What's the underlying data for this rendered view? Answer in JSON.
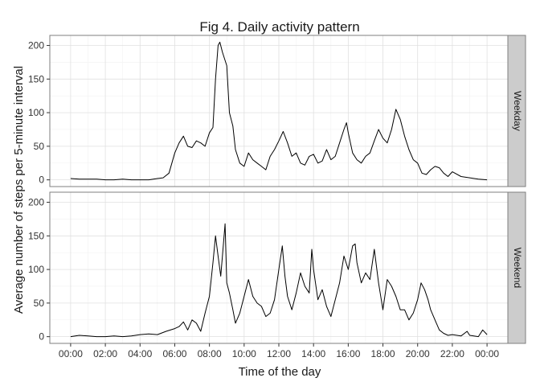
{
  "chart_data": {
    "type": "line",
    "title": "Fig 4. Daily activity pattern",
    "xlabel": "Time of the day",
    "ylabel": "Average number of steps per 5-minute interval",
    "x_ticks": [
      "00:00",
      "02:00",
      "04:00",
      "06:00",
      "08:00",
      "10:00",
      "12:00",
      "14:00",
      "16:00",
      "18:00",
      "20:00",
      "22:00",
      "00:00"
    ],
    "x_tick_hours": [
      0,
      2,
      4,
      6,
      8,
      10,
      12,
      14,
      16,
      18,
      20,
      22,
      24
    ],
    "y_ticks": [
      0,
      50,
      100,
      150,
      200
    ],
    "xlim_hours": [
      -1.2,
      25.2
    ],
    "ylim": [
      -10,
      215
    ],
    "grid": true,
    "panels": [
      {
        "strip": "Weekday",
        "series": [
          [
            0,
            2
          ],
          [
            0.5,
            1
          ],
          [
            1,
            1
          ],
          [
            1.5,
            1
          ],
          [
            2,
            0
          ],
          [
            2.5,
            0
          ],
          [
            3,
            1
          ],
          [
            3.5,
            0
          ],
          [
            4,
            0
          ],
          [
            4.5,
            0
          ],
          [
            5,
            2
          ],
          [
            5.33,
            3
          ],
          [
            5.67,
            10
          ],
          [
            6,
            40
          ],
          [
            6.25,
            55
          ],
          [
            6.5,
            65
          ],
          [
            6.75,
            50
          ],
          [
            7,
            48
          ],
          [
            7.25,
            58
          ],
          [
            7.5,
            55
          ],
          [
            7.75,
            50
          ],
          [
            8,
            70
          ],
          [
            8.2,
            78
          ],
          [
            8.35,
            150
          ],
          [
            8.5,
            200
          ],
          [
            8.6,
            205
          ],
          [
            8.75,
            190
          ],
          [
            9,
            170
          ],
          [
            9.15,
            100
          ],
          [
            9.35,
            80
          ],
          [
            9.5,
            45
          ],
          [
            9.75,
            25
          ],
          [
            10,
            20
          ],
          [
            10.25,
            40
          ],
          [
            10.5,
            30
          ],
          [
            10.75,
            25
          ],
          [
            11,
            20
          ],
          [
            11.25,
            15
          ],
          [
            11.5,
            35
          ],
          [
            11.75,
            45
          ],
          [
            12,
            58
          ],
          [
            12.25,
            72
          ],
          [
            12.5,
            55
          ],
          [
            12.75,
            35
          ],
          [
            13,
            40
          ],
          [
            13.25,
            25
          ],
          [
            13.5,
            22
          ],
          [
            13.75,
            35
          ],
          [
            14,
            38
          ],
          [
            14.25,
            25
          ],
          [
            14.5,
            28
          ],
          [
            14.75,
            45
          ],
          [
            15,
            30
          ],
          [
            15.25,
            35
          ],
          [
            15.5,
            55
          ],
          [
            15.75,
            75
          ],
          [
            15.9,
            85
          ],
          [
            16,
            70
          ],
          [
            16.25,
            40
          ],
          [
            16.5,
            30
          ],
          [
            16.75,
            25
          ],
          [
            17,
            35
          ],
          [
            17.25,
            40
          ],
          [
            17.5,
            58
          ],
          [
            17.75,
            75
          ],
          [
            18,
            62
          ],
          [
            18.25,
            55
          ],
          [
            18.5,
            75
          ],
          [
            18.75,
            105
          ],
          [
            19,
            90
          ],
          [
            19.25,
            65
          ],
          [
            19.5,
            45
          ],
          [
            19.75,
            30
          ],
          [
            20,
            25
          ],
          [
            20.25,
            10
          ],
          [
            20.5,
            8
          ],
          [
            20.75,
            15
          ],
          [
            21,
            20
          ],
          [
            21.25,
            18
          ],
          [
            21.5,
            10
          ],
          [
            21.75,
            5
          ],
          [
            22,
            12
          ],
          [
            22.5,
            5
          ],
          [
            23,
            3
          ],
          [
            23.5,
            1
          ],
          [
            24,
            0
          ]
        ]
      },
      {
        "strip": "Weekend",
        "series": [
          [
            0,
            0
          ],
          [
            0.5,
            2
          ],
          [
            1,
            1
          ],
          [
            1.5,
            0
          ],
          [
            2,
            0
          ],
          [
            2.5,
            1
          ],
          [
            3,
            0
          ],
          [
            3.5,
            1
          ],
          [
            4,
            3
          ],
          [
            4.5,
            4
          ],
          [
            5,
            3
          ],
          [
            5.5,
            8
          ],
          [
            6,
            12
          ],
          [
            6.25,
            15
          ],
          [
            6.5,
            22
          ],
          [
            6.75,
            10
          ],
          [
            7,
            25
          ],
          [
            7.25,
            20
          ],
          [
            7.5,
            8
          ],
          [
            7.75,
            35
          ],
          [
            8,
            60
          ],
          [
            8.2,
            110
          ],
          [
            8.35,
            150
          ],
          [
            8.5,
            120
          ],
          [
            8.65,
            90
          ],
          [
            8.75,
            120
          ],
          [
            8.9,
            168
          ],
          [
            9,
            80
          ],
          [
            9.15,
            65
          ],
          [
            9.35,
            40
          ],
          [
            9.5,
            20
          ],
          [
            9.75,
            35
          ],
          [
            10,
            60
          ],
          [
            10.25,
            85
          ],
          [
            10.5,
            60
          ],
          [
            10.75,
            50
          ],
          [
            11,
            45
          ],
          [
            11.25,
            30
          ],
          [
            11.5,
            35
          ],
          [
            11.75,
            55
          ],
          [
            12,
            100
          ],
          [
            12.2,
            135
          ],
          [
            12.35,
            90
          ],
          [
            12.5,
            60
          ],
          [
            12.75,
            40
          ],
          [
            13,
            65
          ],
          [
            13.25,
            95
          ],
          [
            13.5,
            75
          ],
          [
            13.75,
            65
          ],
          [
            13.9,
            130
          ],
          [
            14,
            100
          ],
          [
            14.25,
            55
          ],
          [
            14.5,
            70
          ],
          [
            14.75,
            45
          ],
          [
            15,
            30
          ],
          [
            15.25,
            55
          ],
          [
            15.5,
            80
          ],
          [
            15.75,
            120
          ],
          [
            16,
            100
          ],
          [
            16.25,
            135
          ],
          [
            16.4,
            138
          ],
          [
            16.5,
            110
          ],
          [
            16.75,
            80
          ],
          [
            17,
            95
          ],
          [
            17.25,
            85
          ],
          [
            17.5,
            130
          ],
          [
            17.75,
            80
          ],
          [
            18,
            40
          ],
          [
            18.25,
            85
          ],
          [
            18.5,
            75
          ],
          [
            18.75,
            60
          ],
          [
            19,
            40
          ],
          [
            19.25,
            40
          ],
          [
            19.5,
            25
          ],
          [
            19.75,
            35
          ],
          [
            20,
            55
          ],
          [
            20.2,
            80
          ],
          [
            20.4,
            70
          ],
          [
            20.6,
            55
          ],
          [
            20.75,
            40
          ],
          [
            21,
            25
          ],
          [
            21.25,
            10
          ],
          [
            21.5,
            5
          ],
          [
            21.75,
            2
          ],
          [
            22,
            3
          ],
          [
            22.5,
            1
          ],
          [
            22.85,
            8
          ],
          [
            23,
            2
          ],
          [
            23.5,
            0
          ],
          [
            23.75,
            10
          ],
          [
            24,
            3
          ]
        ]
      }
    ]
  }
}
